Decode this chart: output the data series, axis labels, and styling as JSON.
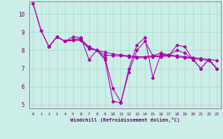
{
  "xlabel": "Windchill (Refroidissement éolien,°C)",
  "xlim": [
    -0.5,
    23.5
  ],
  "ylim": [
    4.8,
    10.7
  ],
  "yticks": [
    5,
    6,
    7,
    8,
    9,
    10
  ],
  "xticks": [
    0,
    1,
    2,
    3,
    4,
    5,
    6,
    7,
    8,
    9,
    10,
    11,
    12,
    13,
    14,
    15,
    16,
    17,
    18,
    19,
    20,
    21,
    22,
    23
  ],
  "bg_color": "#cceee8",
  "grid_color": "#aaddcc",
  "line_color": "#aa00aa",
  "line1": [
    10.6,
    9.1,
    8.2,
    8.75,
    8.5,
    8.75,
    8.7,
    7.5,
    8.0,
    7.5,
    5.2,
    5.1,
    7.0,
    8.3,
    8.7,
    6.5,
    7.8,
    7.7,
    8.3,
    8.2,
    7.5,
    7.0,
    7.5,
    7.0
  ],
  "line2": [
    null,
    null,
    8.2,
    8.75,
    8.5,
    8.6,
    8.6,
    8.2,
    8.0,
    7.9,
    7.8,
    7.75,
    7.7,
    7.65,
    7.65,
    7.7,
    7.7,
    7.75,
    7.7,
    7.65,
    7.6,
    7.55,
    7.5,
    7.45
  ],
  "line3": [
    null,
    null,
    8.2,
    8.75,
    8.5,
    8.55,
    8.55,
    8.1,
    8.0,
    7.75,
    7.7,
    7.7,
    7.65,
    7.6,
    7.6,
    7.65,
    7.65,
    7.7,
    7.65,
    7.6,
    7.55,
    7.5,
    7.45,
    7.0
  ],
  "line4": [
    10.6,
    9.1,
    8.2,
    8.75,
    8.5,
    8.6,
    8.65,
    8.1,
    8.0,
    7.6,
    5.9,
    5.15,
    6.8,
    8.0,
    8.5,
    7.7,
    7.85,
    7.75,
    8.0,
    7.85,
    7.5,
    7.0,
    7.5,
    7.0
  ]
}
